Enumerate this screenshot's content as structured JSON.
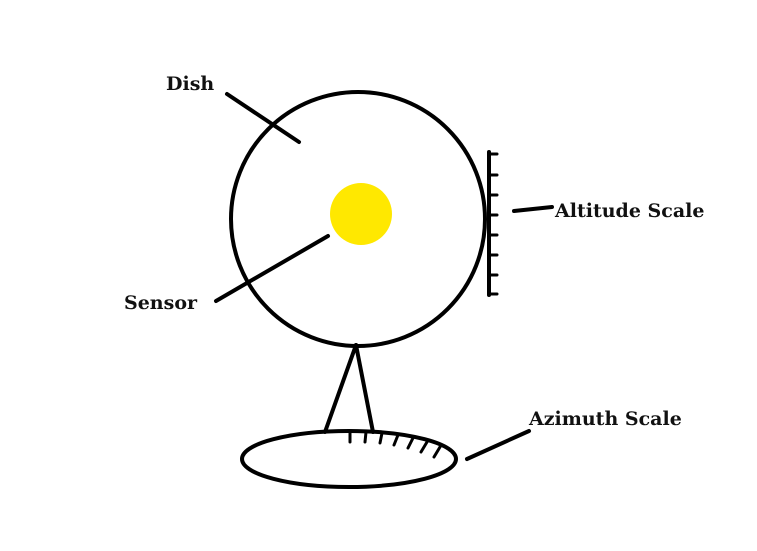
{
  "labels": {
    "dish": "Dish",
    "sensor": "Sensor",
    "altitude_scale": "Altitude Scale",
    "azimuth_scale": "Azimuth Scale"
  },
  "colors": {
    "sensor_fill": "#FFE800",
    "line": "#000000",
    "background": "#FFFFFF"
  }
}
